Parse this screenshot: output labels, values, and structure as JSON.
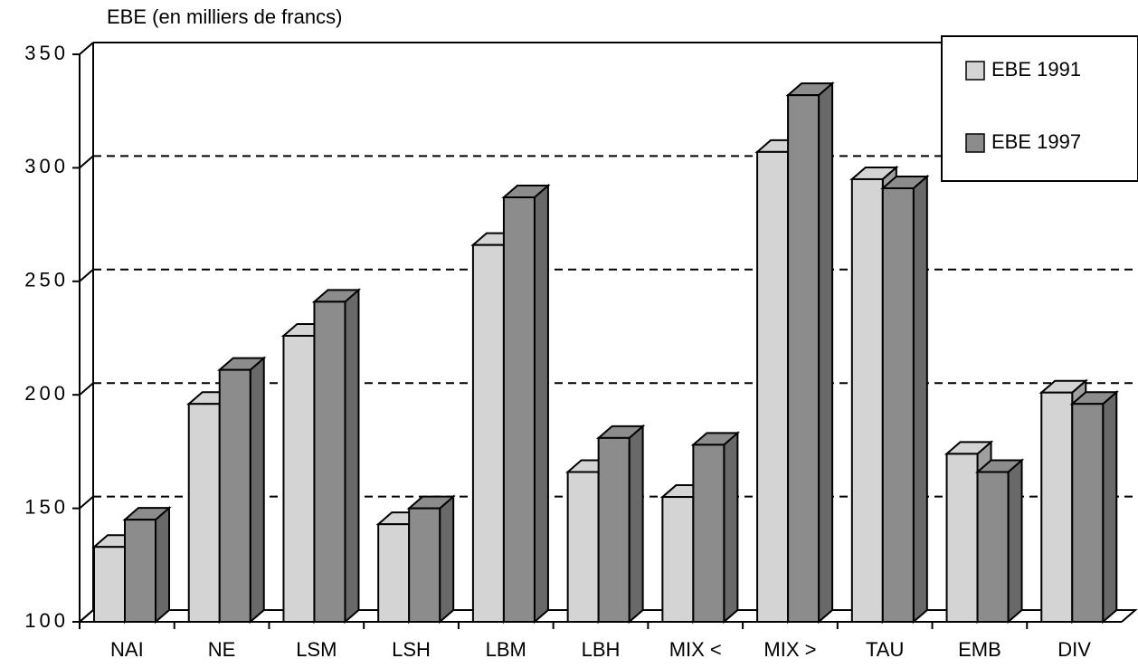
{
  "chart_data": {
    "type": "bar3d",
    "y_label": "EBE (en milliers de francs)",
    "categories": [
      "NAI",
      "NE",
      "LSM",
      "LSH",
      "LBM",
      "LBH",
      "MIX <",
      "MIX >",
      "TAU",
      "EMB",
      "DIV"
    ],
    "series": [
      {
        "name": "EBE 1991",
        "color": "#d4d4d4",
        "values": [
          133,
          196,
          226,
          143,
          266,
          166,
          155,
          307,
          295,
          174,
          201
        ]
      },
      {
        "name": "EBE 1997",
        "color": "#8c8c8c",
        "values": [
          145,
          211,
          241,
          150,
          287,
          181,
          178,
          332,
          291,
          166,
          196
        ]
      }
    ],
    "ylim": [
      100,
      350
    ],
    "yticks": [
      100,
      150,
      200,
      250,
      300,
      350
    ],
    "grid": true,
    "legend": "top-right"
  }
}
